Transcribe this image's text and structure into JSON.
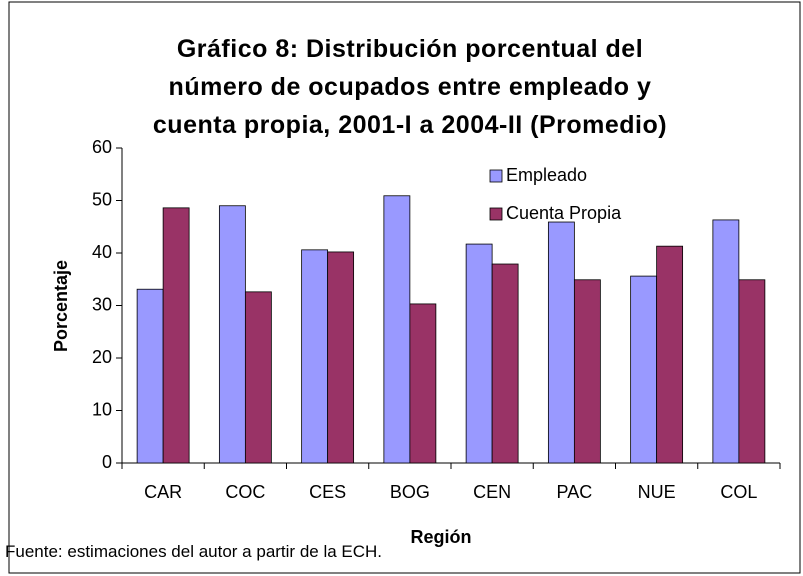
{
  "chart_data": {
    "type": "bar",
    "title": "Gráfico 8: Distribución porcentual del número de ocupados entre empleado y cuenta propia, 2001-I a 2004-II (Promedio)",
    "x_label": "Región",
    "y_label": "Porcentaje",
    "source": "Fuente: estimaciones del autor a partir de la ECH.",
    "categories": [
      "CAR",
      "COC",
      "CES",
      "BOG",
      "CEN",
      "PAC",
      "NUE",
      "COL"
    ],
    "series": [
      {
        "name": "Empleado",
        "color": "#9999ff",
        "values": [
          33.1,
          49.0,
          40.6,
          50.9,
          41.7,
          45.9,
          35.6,
          46.3
        ]
      },
      {
        "name": "Cuenta Propia",
        "color": "#993366",
        "values": [
          48.6,
          32.6,
          40.2,
          30.3,
          37.9,
          34.9,
          41.3,
          34.9
        ]
      }
    ],
    "ylim": [
      0,
      60
    ],
    "yticks": [
      0,
      10,
      20,
      30,
      40,
      50,
      60
    ],
    "grid": false
  }
}
